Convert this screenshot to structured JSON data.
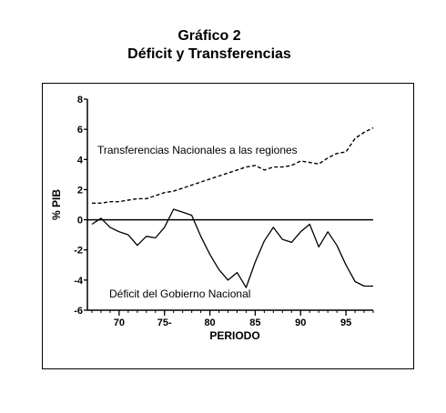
{
  "chart_data": {
    "type": "line",
    "title": "Gráfico 2",
    "subtitle": "Déficit y Transferencias",
    "xlabel": "PERIODO",
    "ylabel": "% PIB",
    "xlim": [
      1966.5,
      1998
    ],
    "ylim": [
      -6,
      8
    ],
    "x_ticks": [
      70,
      75,
      80,
      85,
      90,
      95
    ],
    "x_tick_labels": [
      "70",
      "75-",
      "80",
      "85",
      "90",
      "95"
    ],
    "y_ticks": [
      -6,
      -4,
      -2,
      0,
      2,
      4,
      6,
      8
    ],
    "y_tick_labels": [
      "-6",
      "-4",
      "-2",
      "0",
      "2",
      "4",
      "6",
      "8"
    ],
    "reference_line_y": 0,
    "annotations": {
      "transferencias": "Transferencias Nacionales a las regiones",
      "deficit": "Déficit del Gobierno Nacional"
    },
    "series": [
      {
        "name": "Transferencias Nacionales a las regiones",
        "style": "dashed",
        "x": [
          1967,
          1968,
          1969,
          1970,
          1971,
          1972,
          1973,
          1974,
          1975,
          1976,
          1977,
          1978,
          1979,
          1980,
          1981,
          1982,
          1983,
          1984,
          1985,
          1986,
          1987,
          1988,
          1989,
          1990,
          1991,
          1992,
          1993,
          1994,
          1995,
          1996,
          1997,
          1998
        ],
        "values": [
          1.1,
          1.1,
          1.2,
          1.2,
          1.3,
          1.4,
          1.4,
          1.6,
          1.8,
          1.9,
          2.1,
          2.3,
          2.5,
          2.7,
          2.9,
          3.1,
          3.3,
          3.5,
          3.6,
          3.3,
          3.5,
          3.5,
          3.6,
          3.9,
          3.8,
          3.7,
          4.1,
          4.4,
          4.5,
          5.4,
          5.8,
          6.1
        ]
      },
      {
        "name": "Déficit del Gobierno Nacional",
        "style": "solid",
        "x": [
          1967,
          1968,
          1969,
          1970,
          1971,
          1972,
          1973,
          1974,
          1975,
          1976,
          1977,
          1978,
          1979,
          1980,
          1981,
          1982,
          1983,
          1984,
          1985,
          1986,
          1987,
          1988,
          1989,
          1990,
          1991,
          1992,
          1993,
          1994,
          1995,
          1996,
          1997,
          1998
        ],
        "values": [
          -0.3,
          0.1,
          -0.5,
          -0.8,
          -1.0,
          -1.7,
          -1.1,
          -1.2,
          -0.5,
          0.7,
          0.5,
          0.3,
          -1.1,
          -2.3,
          -3.3,
          -4.0,
          -3.5,
          -4.5,
          -2.8,
          -1.4,
          -0.5,
          -1.3,
          -1.5,
          -0.8,
          -0.3,
          -1.8,
          -0.8,
          -1.7,
          -3.0,
          -4.1,
          -4.4,
          -4.4
        ]
      }
    ]
  }
}
